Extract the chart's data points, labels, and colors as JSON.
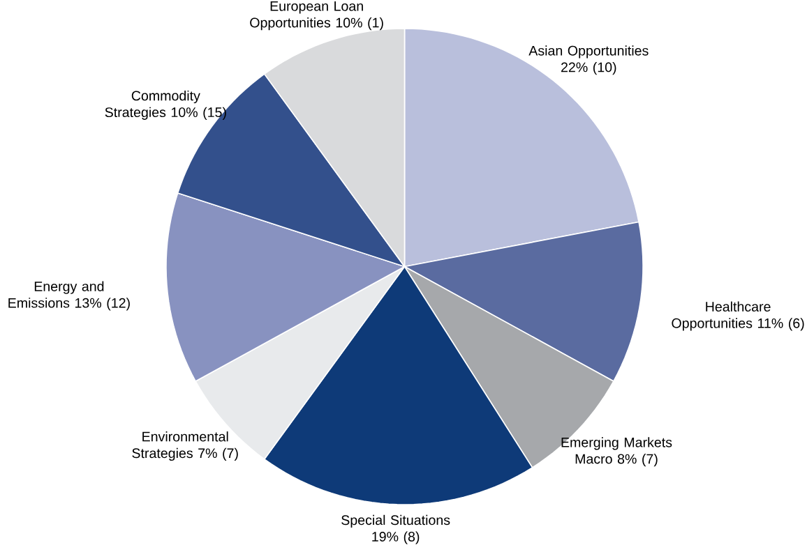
{
  "chart_data": {
    "type": "pie",
    "categories": [
      "Asian Opportunities",
      "Healthcare Opportunities",
      "Emerging Markets Macro",
      "Special Situations",
      "Environmental Strategies",
      "Energy and Emissions",
      "Commodity Strategies",
      "European Loan Opportunities"
    ],
    "values": [
      22,
      11,
      8,
      19,
      7,
      13,
      10,
      10
    ],
    "value_labels": [
      "22% (10)",
      "11% (6)",
      "8% (7)",
      "19% (8)",
      "7% (7)",
      "13% (12)",
      "10% (15)",
      "10% (1)"
    ],
    "colors": [
      "#b9bfdc",
      "#5a6ba0",
      "#a6a8ab",
      "#0e3a78",
      "#e8eaec",
      "#8892c0",
      "#33508c",
      "#d9dadc"
    ]
  }
}
